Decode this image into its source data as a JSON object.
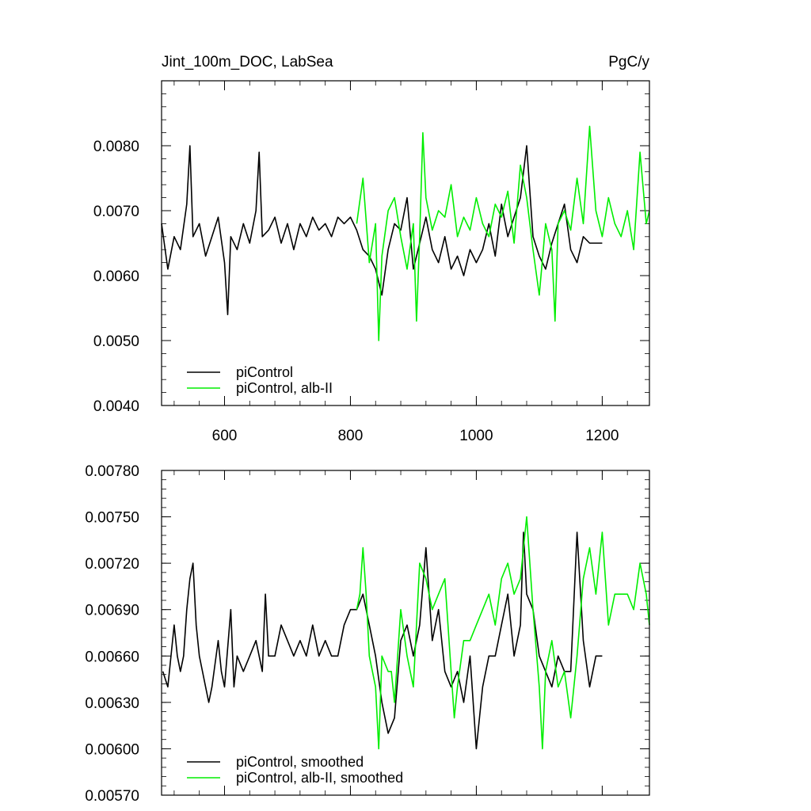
{
  "chart_data": [
    {
      "type": "line",
      "title": "Jint_100m_DOC, LabSea",
      "units": "PgC/y",
      "xlim": [
        500,
        1275
      ],
      "ylim": [
        0.004,
        0.009
      ],
      "xticks": [
        600,
        800,
        1000,
        1200
      ],
      "xtick_labels": [
        "600",
        "800",
        "1000",
        "1200"
      ],
      "yticks": [
        0.004,
        0.005,
        0.006,
        0.007,
        0.008
      ],
      "ytick_labels": [
        "0.0040",
        "0.0050",
        "0.0060",
        "0.0070",
        "0.0080"
      ],
      "legend_position": "bottom-left",
      "series": [
        {
          "name": "piControl",
          "color": "#000000",
          "x": [
            500,
            510,
            520,
            530,
            540,
            545,
            550,
            560,
            570,
            580,
            590,
            600,
            605,
            610,
            620,
            630,
            640,
            650,
            655,
            660,
            670,
            680,
            690,
            700,
            710,
            720,
            730,
            740,
            750,
            760,
            770,
            780,
            790,
            800,
            810,
            820,
            830,
            840,
            850,
            860,
            870,
            880,
            890,
            900,
            910,
            920,
            930,
            940,
            950,
            960,
            970,
            980,
            990,
            1000,
            1010,
            1020,
            1030,
            1040,
            1050,
            1060,
            1070,
            1080,
            1090,
            1100,
            1110,
            1120,
            1130,
            1140,
            1150,
            1160,
            1170,
            1180,
            1190,
            1200
          ],
          "values": [
            0.0068,
            0.0061,
            0.0066,
            0.0064,
            0.0071,
            0.008,
            0.0066,
            0.0068,
            0.0063,
            0.0066,
            0.0069,
            0.0062,
            0.0054,
            0.0066,
            0.0064,
            0.0068,
            0.0065,
            0.007,
            0.0079,
            0.0066,
            0.0067,
            0.0069,
            0.0065,
            0.0068,
            0.0064,
            0.0068,
            0.0066,
            0.0069,
            0.0067,
            0.0068,
            0.0066,
            0.0069,
            0.0068,
            0.0069,
            0.0067,
            0.0064,
            0.0063,
            0.0061,
            0.0057,
            0.0064,
            0.0068,
            0.0067,
            0.0072,
            0.0061,
            0.0065,
            0.0069,
            0.0064,
            0.0062,
            0.0066,
            0.0061,
            0.0063,
            0.006,
            0.0064,
            0.0062,
            0.0064,
            0.0068,
            0.0063,
            0.0071,
            0.0066,
            0.0069,
            0.0072,
            0.008,
            0.0066,
            0.0063,
            0.0061,
            0.0065,
            0.0068,
            0.0071,
            0.0064,
            0.0062,
            0.0066,
            0.0065,
            0.0065,
            0.0065
          ]
        },
        {
          "name": "piControl, alb-II",
          "color": "#00ee00",
          "x": [
            810,
            820,
            830,
            840,
            845,
            850,
            860,
            870,
            880,
            890,
            900,
            905,
            910,
            915,
            920,
            930,
            940,
            950,
            960,
            970,
            980,
            990,
            1000,
            1010,
            1020,
            1030,
            1040,
            1050,
            1060,
            1070,
            1080,
            1090,
            1100,
            1110,
            1120,
            1125,
            1130,
            1140,
            1150,
            1160,
            1170,
            1180,
            1190,
            1200,
            1210,
            1220,
            1230,
            1240,
            1250,
            1260,
            1270,
            1275
          ],
          "values": [
            0.0068,
            0.0075,
            0.0062,
            0.0068,
            0.005,
            0.0063,
            0.007,
            0.0072,
            0.0066,
            0.0061,
            0.0068,
            0.0053,
            0.0066,
            0.0082,
            0.0072,
            0.0067,
            0.007,
            0.0069,
            0.0074,
            0.0066,
            0.0069,
            0.0067,
            0.0072,
            0.0068,
            0.0066,
            0.0071,
            0.0069,
            0.0073,
            0.0065,
            0.0077,
            0.0072,
            0.0064,
            0.0057,
            0.0068,
            0.0064,
            0.0053,
            0.0068,
            0.007,
            0.0067,
            0.0075,
            0.0068,
            0.0083,
            0.007,
            0.0066,
            0.0072,
            0.0068,
            0.0066,
            0.007,
            0.0064,
            0.0079,
            0.0068,
            0.007
          ]
        }
      ]
    },
    {
      "type": "line",
      "xlim": [
        500,
        1275
      ],
      "ylim": [
        0.0057,
        0.0078
      ],
      "xticks": [
        600,
        800,
        1000,
        1200
      ],
      "yticks": [
        0.0057,
        0.006,
        0.0063,
        0.0066,
        0.0069,
        0.0072,
        0.0075,
        0.0078
      ],
      "ytick_labels": [
        "0.00570",
        "0.00600",
        "0.00630",
        "0.00660",
        "0.00690",
        "0.00720",
        "0.00750",
        "0.00780"
      ],
      "legend_position": "bottom-left",
      "series": [
        {
          "name": "piControl, smoothed",
          "color": "#000000",
          "x": [
            502,
            510,
            515,
            520,
            525,
            530,
            535,
            540,
            545,
            550,
            555,
            560,
            570,
            575,
            580,
            590,
            595,
            600,
            610,
            615,
            620,
            630,
            640,
            650,
            660,
            665,
            670,
            680,
            690,
            700,
            710,
            720,
            730,
            740,
            750,
            760,
            770,
            780,
            790,
            800,
            810,
            820,
            830,
            840,
            850,
            860,
            870,
            880,
            890,
            900,
            910,
            920,
            930,
            940,
            950,
            960,
            970,
            980,
            990,
            1000,
            1010,
            1020,
            1030,
            1040,
            1050,
            1060,
            1070,
            1075,
            1080,
            1090,
            1100,
            1110,
            1120,
            1130,
            1140,
            1150,
            1160,
            1170,
            1180,
            1190,
            1200
          ],
          "values": [
            0.0065,
            0.0064,
            0.0066,
            0.0068,
            0.0066,
            0.0065,
            0.0066,
            0.0069,
            0.0071,
            0.0072,
            0.0068,
            0.0066,
            0.0064,
            0.0063,
            0.0064,
            0.0067,
            0.0065,
            0.0064,
            0.0069,
            0.0064,
            0.0066,
            0.0065,
            0.0066,
            0.0067,
            0.0065,
            0.007,
            0.0066,
            0.0066,
            0.0068,
            0.0067,
            0.0066,
            0.0067,
            0.0066,
            0.0068,
            0.0066,
            0.0067,
            0.0066,
            0.0066,
            0.0068,
            0.0069,
            0.0069,
            0.007,
            0.0068,
            0.0066,
            0.0063,
            0.0061,
            0.0062,
            0.0067,
            0.0068,
            0.0066,
            0.0068,
            0.0073,
            0.0067,
            0.0069,
            0.0065,
            0.0064,
            0.0065,
            0.0063,
            0.0066,
            0.006,
            0.0064,
            0.0066,
            0.0066,
            0.0068,
            0.007,
            0.0066,
            0.0068,
            0.0074,
            0.007,
            0.0069,
            0.0066,
            0.0065,
            0.0064,
            0.0066,
            0.0065,
            0.0065,
            0.0074,
            0.0067,
            0.0064,
            0.0066,
            0.0066
          ]
        },
        {
          "name": "piControl, alb-II, smoothed",
          "color": "#00ee00",
          "x": [
            810,
            815,
            820,
            825,
            830,
            840,
            845,
            850,
            860,
            865,
            870,
            880,
            890,
            900,
            910,
            920,
            930,
            940,
            950,
            960,
            965,
            970,
            980,
            990,
            1000,
            1010,
            1020,
            1030,
            1040,
            1050,
            1060,
            1070,
            1080,
            1090,
            1100,
            1105,
            1110,
            1120,
            1130,
            1140,
            1150,
            1160,
            1170,
            1180,
            1190,
            1200,
            1210,
            1220,
            1230,
            1240,
            1250,
            1260,
            1270,
            1275
          ],
          "values": [
            0.0069,
            0.007,
            0.0073,
            0.007,
            0.0066,
            0.0064,
            0.006,
            0.0066,
            0.0065,
            0.0065,
            0.0063,
            0.0069,
            0.0066,
            0.0064,
            0.0072,
            0.0071,
            0.0069,
            0.007,
            0.0071,
            0.0065,
            0.0062,
            0.0064,
            0.0067,
            0.0067,
            0.0068,
            0.0069,
            0.007,
            0.0068,
            0.0071,
            0.0072,
            0.007,
            0.0071,
            0.0075,
            0.0069,
            0.0064,
            0.006,
            0.0065,
            0.0067,
            0.0064,
            0.0065,
            0.0062,
            0.0066,
            0.0071,
            0.0073,
            0.007,
            0.0074,
            0.0068,
            0.007,
            0.007,
            0.007,
            0.0069,
            0.0072,
            0.007,
            0.0068
          ]
        }
      ]
    }
  ]
}
